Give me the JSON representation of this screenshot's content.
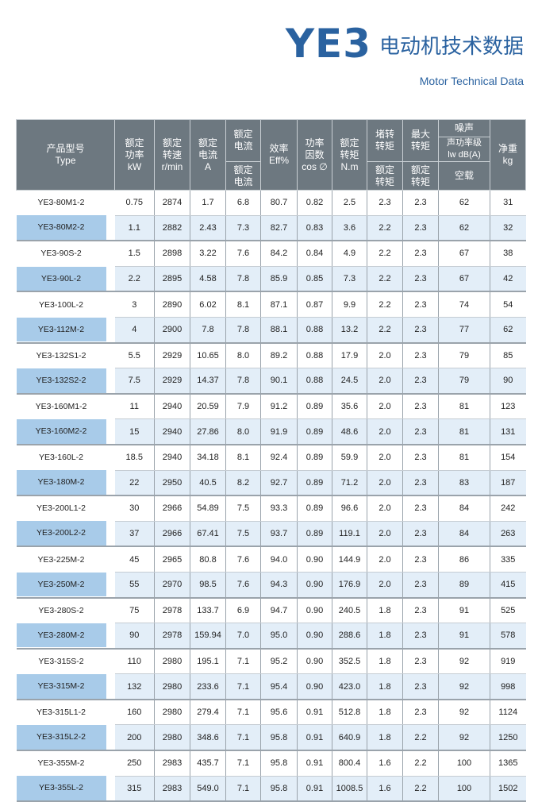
{
  "title": {
    "model": "YE3",
    "cn": "电动机技术数据",
    "en": "Motor Technical Data"
  },
  "header": {
    "type_cn": "产品型号",
    "type_en": "Type",
    "power": "额定\n功率\nkW",
    "speed": "额定\n转速\nr/min",
    "current": "额定\n电流\nA",
    "ratio_top": "额定\n电流",
    "ratio_bot": "额定\n电流",
    "eff": "效率\nEff%",
    "pf": "功率\n因数\ncos ∅",
    "torque": "额定\n转矩\nN.m",
    "lr_top": "堵转\n转矩",
    "lr_bot": "额定\n转矩",
    "max_top": "最大\n转矩",
    "max_bot": "额定\n转矩",
    "noise": "噪声",
    "noise_sub": "声功率级\nlw dB(A)",
    "noise_load": "空载",
    "weight": "净重\nkg"
  },
  "rows": [
    [
      "YE3-80M1-2",
      "0.75",
      "2874",
      "1.7",
      "6.8",
      "80.7",
      "0.82",
      "2.5",
      "2.3",
      "2.3",
      "62",
      "31"
    ],
    [
      "YE3-80M2-2",
      "1.1",
      "2882",
      "2.43",
      "7.3",
      "82.7",
      "0.83",
      "3.6",
      "2.2",
      "2.3",
      "62",
      "32"
    ],
    [
      "YE3-90S-2",
      "1.5",
      "2898",
      "3.22",
      "7.6",
      "84.2",
      "0.84",
      "4.9",
      "2.2",
      "2.3",
      "67",
      "38"
    ],
    [
      "YE3-90L-2",
      "2.2",
      "2895",
      "4.58",
      "7.8",
      "85.9",
      "0.85",
      "7.3",
      "2.2",
      "2.3",
      "67",
      "42"
    ],
    [
      "YE3-100L-2",
      "3",
      "2890",
      "6.02",
      "8.1",
      "87.1",
      "0.87",
      "9.9",
      "2.2",
      "2.3",
      "74",
      "54"
    ],
    [
      "YE3-112M-2",
      "4",
      "2900",
      "7.8",
      "7.8",
      "88.1",
      "0.88",
      "13.2",
      "2.2",
      "2.3",
      "77",
      "62"
    ],
    [
      "YE3-132S1-2",
      "5.5",
      "2929",
      "10.65",
      "8.0",
      "89.2",
      "0.88",
      "17.9",
      "2.0",
      "2.3",
      "79",
      "85"
    ],
    [
      "YE3-132S2-2",
      "7.5",
      "2929",
      "14.37",
      "7.8",
      "90.1",
      "0.88",
      "24.5",
      "2.0",
      "2.3",
      "79",
      "90"
    ],
    [
      "YE3-160M1-2",
      "11",
      "2940",
      "20.59",
      "7.9",
      "91.2",
      "0.89",
      "35.6",
      "2.0",
      "2.3",
      "81",
      "123"
    ],
    [
      "YE3-160M2-2",
      "15",
      "2940",
      "27.86",
      "8.0",
      "91.9",
      "0.89",
      "48.6",
      "2.0",
      "2.3",
      "81",
      "131"
    ],
    [
      "YE3-160L-2",
      "18.5",
      "2940",
      "34.18",
      "8.1",
      "92.4",
      "0.89",
      "59.9",
      "2.0",
      "2.3",
      "81",
      "154"
    ],
    [
      "YE3-180M-2",
      "22",
      "2950",
      "40.5",
      "8.2",
      "92.7",
      "0.89",
      "71.2",
      "2.0",
      "2.3",
      "83",
      "187"
    ],
    [
      "YE3-200L1-2",
      "30",
      "2966",
      "54.89",
      "7.5",
      "93.3",
      "0.89",
      "96.6",
      "2.0",
      "2.3",
      "84",
      "242"
    ],
    [
      "YE3-200L2-2",
      "37",
      "2966",
      "67.41",
      "7.5",
      "93.7",
      "0.89",
      "119.1",
      "2.0",
      "2.3",
      "84",
      "263"
    ],
    [
      "YE3-225M-2",
      "45",
      "2965",
      "80.8",
      "7.6",
      "94.0",
      "0.90",
      "144.9",
      "2.0",
      "2.3",
      "86",
      "335"
    ],
    [
      "YE3-250M-2",
      "55",
      "2970",
      "98.5",
      "7.6",
      "94.3",
      "0.90",
      "176.9",
      "2.0",
      "2.3",
      "89",
      "415"
    ],
    [
      "YE3-280S-2",
      "75",
      "2978",
      "133.7",
      "6.9",
      "94.7",
      "0.90",
      "240.5",
      "1.8",
      "2.3",
      "91",
      "525"
    ],
    [
      "YE3-280M-2",
      "90",
      "2978",
      "159.94",
      "7.0",
      "95.0",
      "0.90",
      "288.6",
      "1.8",
      "2.3",
      "91",
      "578"
    ],
    [
      "YE3-315S-2",
      "110",
      "2980",
      "195.1",
      "7.1",
      "95.2",
      "0.90",
      "352.5",
      "1.8",
      "2.3",
      "92",
      "919"
    ],
    [
      "YE3-315M-2",
      "132",
      "2980",
      "233.6",
      "7.1",
      "95.4",
      "0.90",
      "423.0",
      "1.8",
      "2.3",
      "92",
      "998"
    ],
    [
      "YE3-315L1-2",
      "160",
      "2980",
      "279.4",
      "7.1",
      "95.6",
      "0.91",
      "512.8",
      "1.8",
      "2.3",
      "92",
      "1124"
    ],
    [
      "YE3-315L2-2",
      "200",
      "2980",
      "348.6",
      "7.1",
      "95.8",
      "0.91",
      "640.9",
      "1.8",
      "2.2",
      "92",
      "1250"
    ],
    [
      "YE3-355M-2",
      "250",
      "2983",
      "435.7",
      "7.1",
      "95.8",
      "0.91",
      "800.4",
      "1.6",
      "2.2",
      "100",
      "1365"
    ],
    [
      "YE3-355L-2",
      "315",
      "2983",
      "549.0",
      "7.1",
      "95.8",
      "0.91",
      "1008.5",
      "1.6",
      "2.2",
      "100",
      "1502"
    ]
  ],
  "colors": {
    "brand": "#2a62a0",
    "header_bg": "#6d7880",
    "row_alt": "#e3eef8",
    "model_alt": "#a8cbe9"
  }
}
